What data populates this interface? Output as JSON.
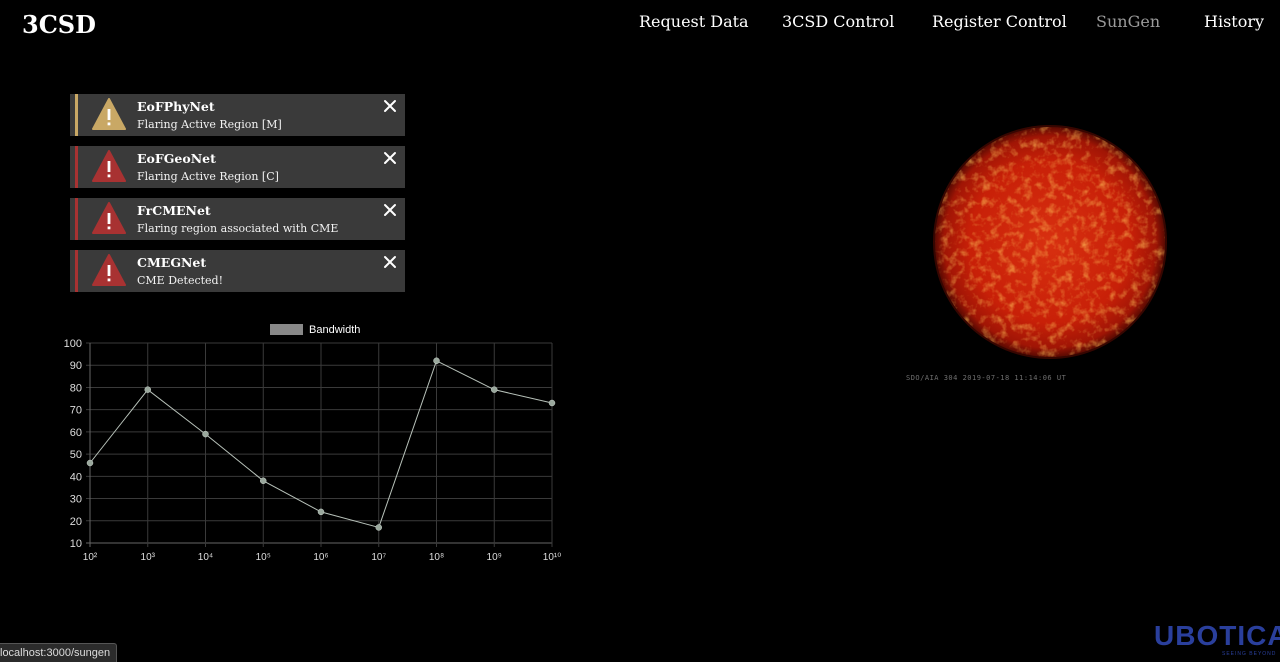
{
  "app": {
    "title": "3CSD"
  },
  "nav": {
    "items": [
      {
        "label": "Request Data"
      },
      {
        "label": "3CSD Control"
      },
      {
        "label": "Register Control"
      },
      {
        "label": "SunGen"
      },
      {
        "label": "History"
      }
    ],
    "active": "SunGen"
  },
  "alerts": [
    {
      "title": "EoFPhyNet",
      "message": "Flaring Active Region [M]",
      "severity": "warning",
      "color": "#c9a865",
      "icon": "warning-icon"
    },
    {
      "title": "EoFGeoNet",
      "message": "Flaring Active Region [C]",
      "severity": "danger",
      "color": "#a83232",
      "icon": "warning-icon"
    },
    {
      "title": "FrCMENet",
      "message": "Flaring region associated with CME",
      "severity": "danger",
      "color": "#a83232",
      "icon": "warning-icon"
    },
    {
      "title": "CMEGNet",
      "message": "CME Detected!",
      "severity": "danger",
      "color": "#a83232",
      "icon": "warning-icon"
    }
  ],
  "chart_data": {
    "type": "line",
    "categories": [
      "10²",
      "10³",
      "10⁴",
      "10⁵",
      "10⁶",
      "10⁷",
      "10⁸",
      "10⁹",
      "10¹⁰"
    ],
    "series": [
      {
        "name": "Bandwidth",
        "values": [
          46,
          79,
          59,
          38,
          24,
          17,
          92,
          79,
          73
        ],
        "color": "#9aa89d"
      }
    ],
    "yticks": [
      10,
      20,
      30,
      40,
      50,
      60,
      70,
      80,
      90,
      100
    ],
    "ylim": [
      10,
      100
    ],
    "grid": true,
    "legend": "top-center"
  },
  "sun": {
    "caption": "SDO/AIA  304    2019-07-18 11:14:06 UT"
  },
  "status": {
    "url": "localhost:3000/sungen"
  },
  "logo": {
    "text": "UBOTICA",
    "tagline": "SEEING BEYOND"
  }
}
